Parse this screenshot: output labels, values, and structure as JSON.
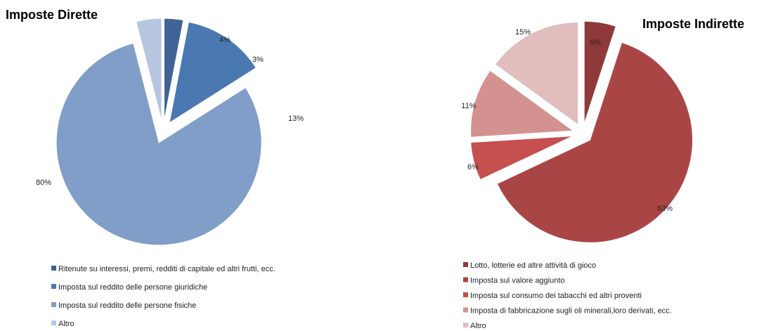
{
  "chart_data": [
    {
      "type": "pie",
      "title": "Imposte Dirette",
      "slices": [
        {
          "label": "Ritenute su interessi, premi, redditi di capitale ed altri frutti, ecc.",
          "value": 3,
          "display": "3%",
          "color": "#3F6394"
        },
        {
          "label": "Imposta sul reddito delle persone giuridiche",
          "value": 13,
          "display": "13%",
          "color": "#4A78B0"
        },
        {
          "label": "Imposta sul reddito delle persone fisiche",
          "value": 80,
          "display": "80%",
          "color": "#809EC8"
        },
        {
          "label": "Altro",
          "value": 4,
          "display": "4%",
          "color": "#B6C6E0"
        }
      ],
      "legend": "bottom"
    },
    {
      "type": "pie",
      "title": "Imposte Indirette",
      "slices": [
        {
          "label": "Lotto, lotterie ed altre attività di gioco",
          "value": 5,
          "display": "5%",
          "color": "#8E3A3A"
        },
        {
          "label": "Imposta sul valore aggiunto",
          "value": 63,
          "display": "63%",
          "color": "#AA4545"
        },
        {
          "label": "Imposta sul consumo dei tabacchi ed altri proventi",
          "value": 6,
          "display": "6%",
          "color": "#C5504F"
        },
        {
          "label": "Imposta di fabbricazione sugli oli minerali,loro derivati, ecc.",
          "value": 11,
          "display": "11%",
          "color": "#D39290"
        },
        {
          "label": "Altro",
          "value": 15,
          "display": "15%",
          "color": "#E1BDBD"
        }
      ],
      "legend": "bottom"
    }
  ]
}
